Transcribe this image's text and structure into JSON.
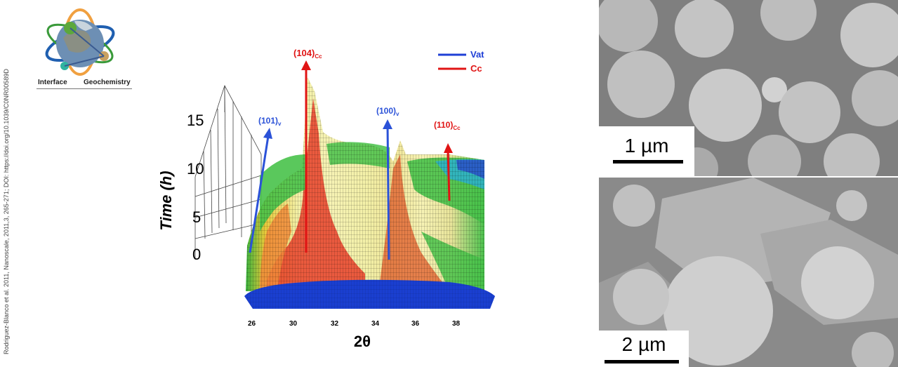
{
  "citation": "Rodriguez-Blanco et al. 2011, Nanoscale, 2011,3, 265-271; DOI: https://doi.org/10.1039/C0NR00589D",
  "logo": {
    "word1": "Interface",
    "word2": "Geochemistry"
  },
  "figure": {
    "y_axis_label": "Time (h)",
    "y_ticks": [
      "15",
      "10",
      "5",
      "0"
    ],
    "x_axis_label": "2θ",
    "x_ticks": [
      "26",
      "30",
      "32",
      "34",
      "36",
      "38"
    ],
    "legend": [
      {
        "name": "Vat",
        "color": "#1f3fd6"
      },
      {
        "name": "Cc",
        "color": "#e01414"
      }
    ],
    "peaks": [
      {
        "label": "(104)",
        "sub": "Cc",
        "color": "#e01414"
      },
      {
        "label": "(101)",
        "sub": "v",
        "color": "#2b52d8"
      },
      {
        "label": "(100)",
        "sub": "v",
        "color": "#2b52d8"
      },
      {
        "label": "(110)",
        "sub": "Cc",
        "color": "#e01414"
      }
    ],
    "colors": {
      "base": "#1a3fd0",
      "high": "#f3f0a8",
      "red": "#e8402a",
      "green": "#48c24a",
      "teal": "#2fb3c8",
      "blue": "#2a55c8"
    }
  },
  "images": [
    {
      "scale_label": "1 µm"
    },
    {
      "scale_label": "2 µm"
    }
  ]
}
